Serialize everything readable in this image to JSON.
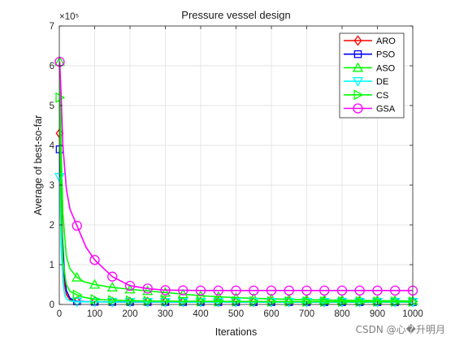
{
  "watermark": "CSDN @心�升明月",
  "chart_data": {
    "type": "line",
    "title": "Pressure vessel design",
    "xlabel": "Iterations",
    "ylabel": "Average of best-so-far",
    "y_exponent_label": "×10⁵",
    "xlim": [
      0,
      1000
    ],
    "ylim": [
      0,
      700000
    ],
    "xticks": [
      0,
      100,
      200,
      300,
      400,
      500,
      600,
      700,
      800,
      900,
      1000
    ],
    "yticks": [
      0,
      100000,
      200000,
      300000,
      400000,
      500000,
      600000,
      700000
    ],
    "ytick_labels": [
      "0",
      "1",
      "2",
      "3",
      "4",
      "5",
      "6",
      "7"
    ],
    "grid": true,
    "legend_position": "top-right",
    "series": [
      {
        "name": "ARO",
        "color": "#ff0000",
        "marker": "diamond",
        "x": [
          1,
          5,
          10,
          15,
          20,
          30,
          40,
          50,
          70,
          100,
          150,
          200,
          300,
          500,
          1000
        ],
        "values": [
          430000,
          300000,
          130000,
          50000,
          25000,
          12000,
          9000,
          7500,
          6800,
          6500,
          6300,
          6200,
          6100,
          6080,
          6060
        ]
      },
      {
        "name": "PSO",
        "color": "#0000ff",
        "marker": "square",
        "x": [
          1,
          5,
          10,
          15,
          20,
          30,
          40,
          50,
          70,
          100,
          150,
          200,
          300,
          500,
          1000
        ],
        "values": [
          390000,
          230000,
          150000,
          70000,
          35000,
          16000,
          10000,
          8000,
          7200,
          6800,
          6500,
          6300,
          6200,
          6100,
          6080
        ]
      },
      {
        "name": "ASO",
        "color": "#00ff00",
        "marker": "triangle-up",
        "x": [
          1,
          5,
          10,
          20,
          30,
          50,
          70,
          100,
          150,
          200,
          250,
          300,
          350,
          400,
          500,
          600,
          700,
          800,
          900,
          1000
        ],
        "values": [
          610000,
          400000,
          230000,
          120000,
          90000,
          68000,
          57000,
          50000,
          43000,
          38000,
          34000,
          30000,
          26000,
          22000,
          17000,
          14000,
          12000,
          10500,
          9500,
          8800
        ]
      },
      {
        "name": "DE",
        "color": "#00ffff",
        "marker": "triangle-down",
        "x": [
          1,
          5,
          10,
          15,
          20,
          30,
          40,
          50,
          70,
          100,
          150,
          200,
          300,
          500,
          1000
        ],
        "values": [
          320000,
          150000,
          60000,
          25000,
          14000,
          9000,
          7500,
          7000,
          6600,
          6400,
          6250,
          6150,
          6100,
          6070,
          6060
        ]
      },
      {
        "name": "CS",
        "color": "#00ff00",
        "marker": "triangle-right",
        "x": [
          1,
          5,
          10,
          20,
          30,
          50,
          70,
          100,
          150,
          200,
          250,
          300,
          400,
          500,
          600,
          700,
          800,
          900,
          1000
        ],
        "values": [
          520000,
          250000,
          110000,
          50000,
          33000,
          24000,
          18000,
          13000,
          10500,
          9500,
          8800,
          8300,
          7800,
          7500,
          7300,
          7200,
          7100,
          7050,
          7000
        ]
      },
      {
        "name": "GSA",
        "color": "#ff00ff",
        "marker": "circle",
        "x": [
          1,
          5,
          10,
          20,
          30,
          50,
          75,
          100,
          150,
          200,
          250,
          300,
          400,
          500,
          600,
          700,
          800,
          900,
          1000
        ],
        "values": [
          610000,
          530000,
          400000,
          290000,
          240000,
          198000,
          145000,
          112000,
          70000,
          47000,
          40000,
          36000,
          35000,
          35000,
          35000,
          35000,
          35000,
          35000,
          35000
        ]
      }
    ]
  }
}
